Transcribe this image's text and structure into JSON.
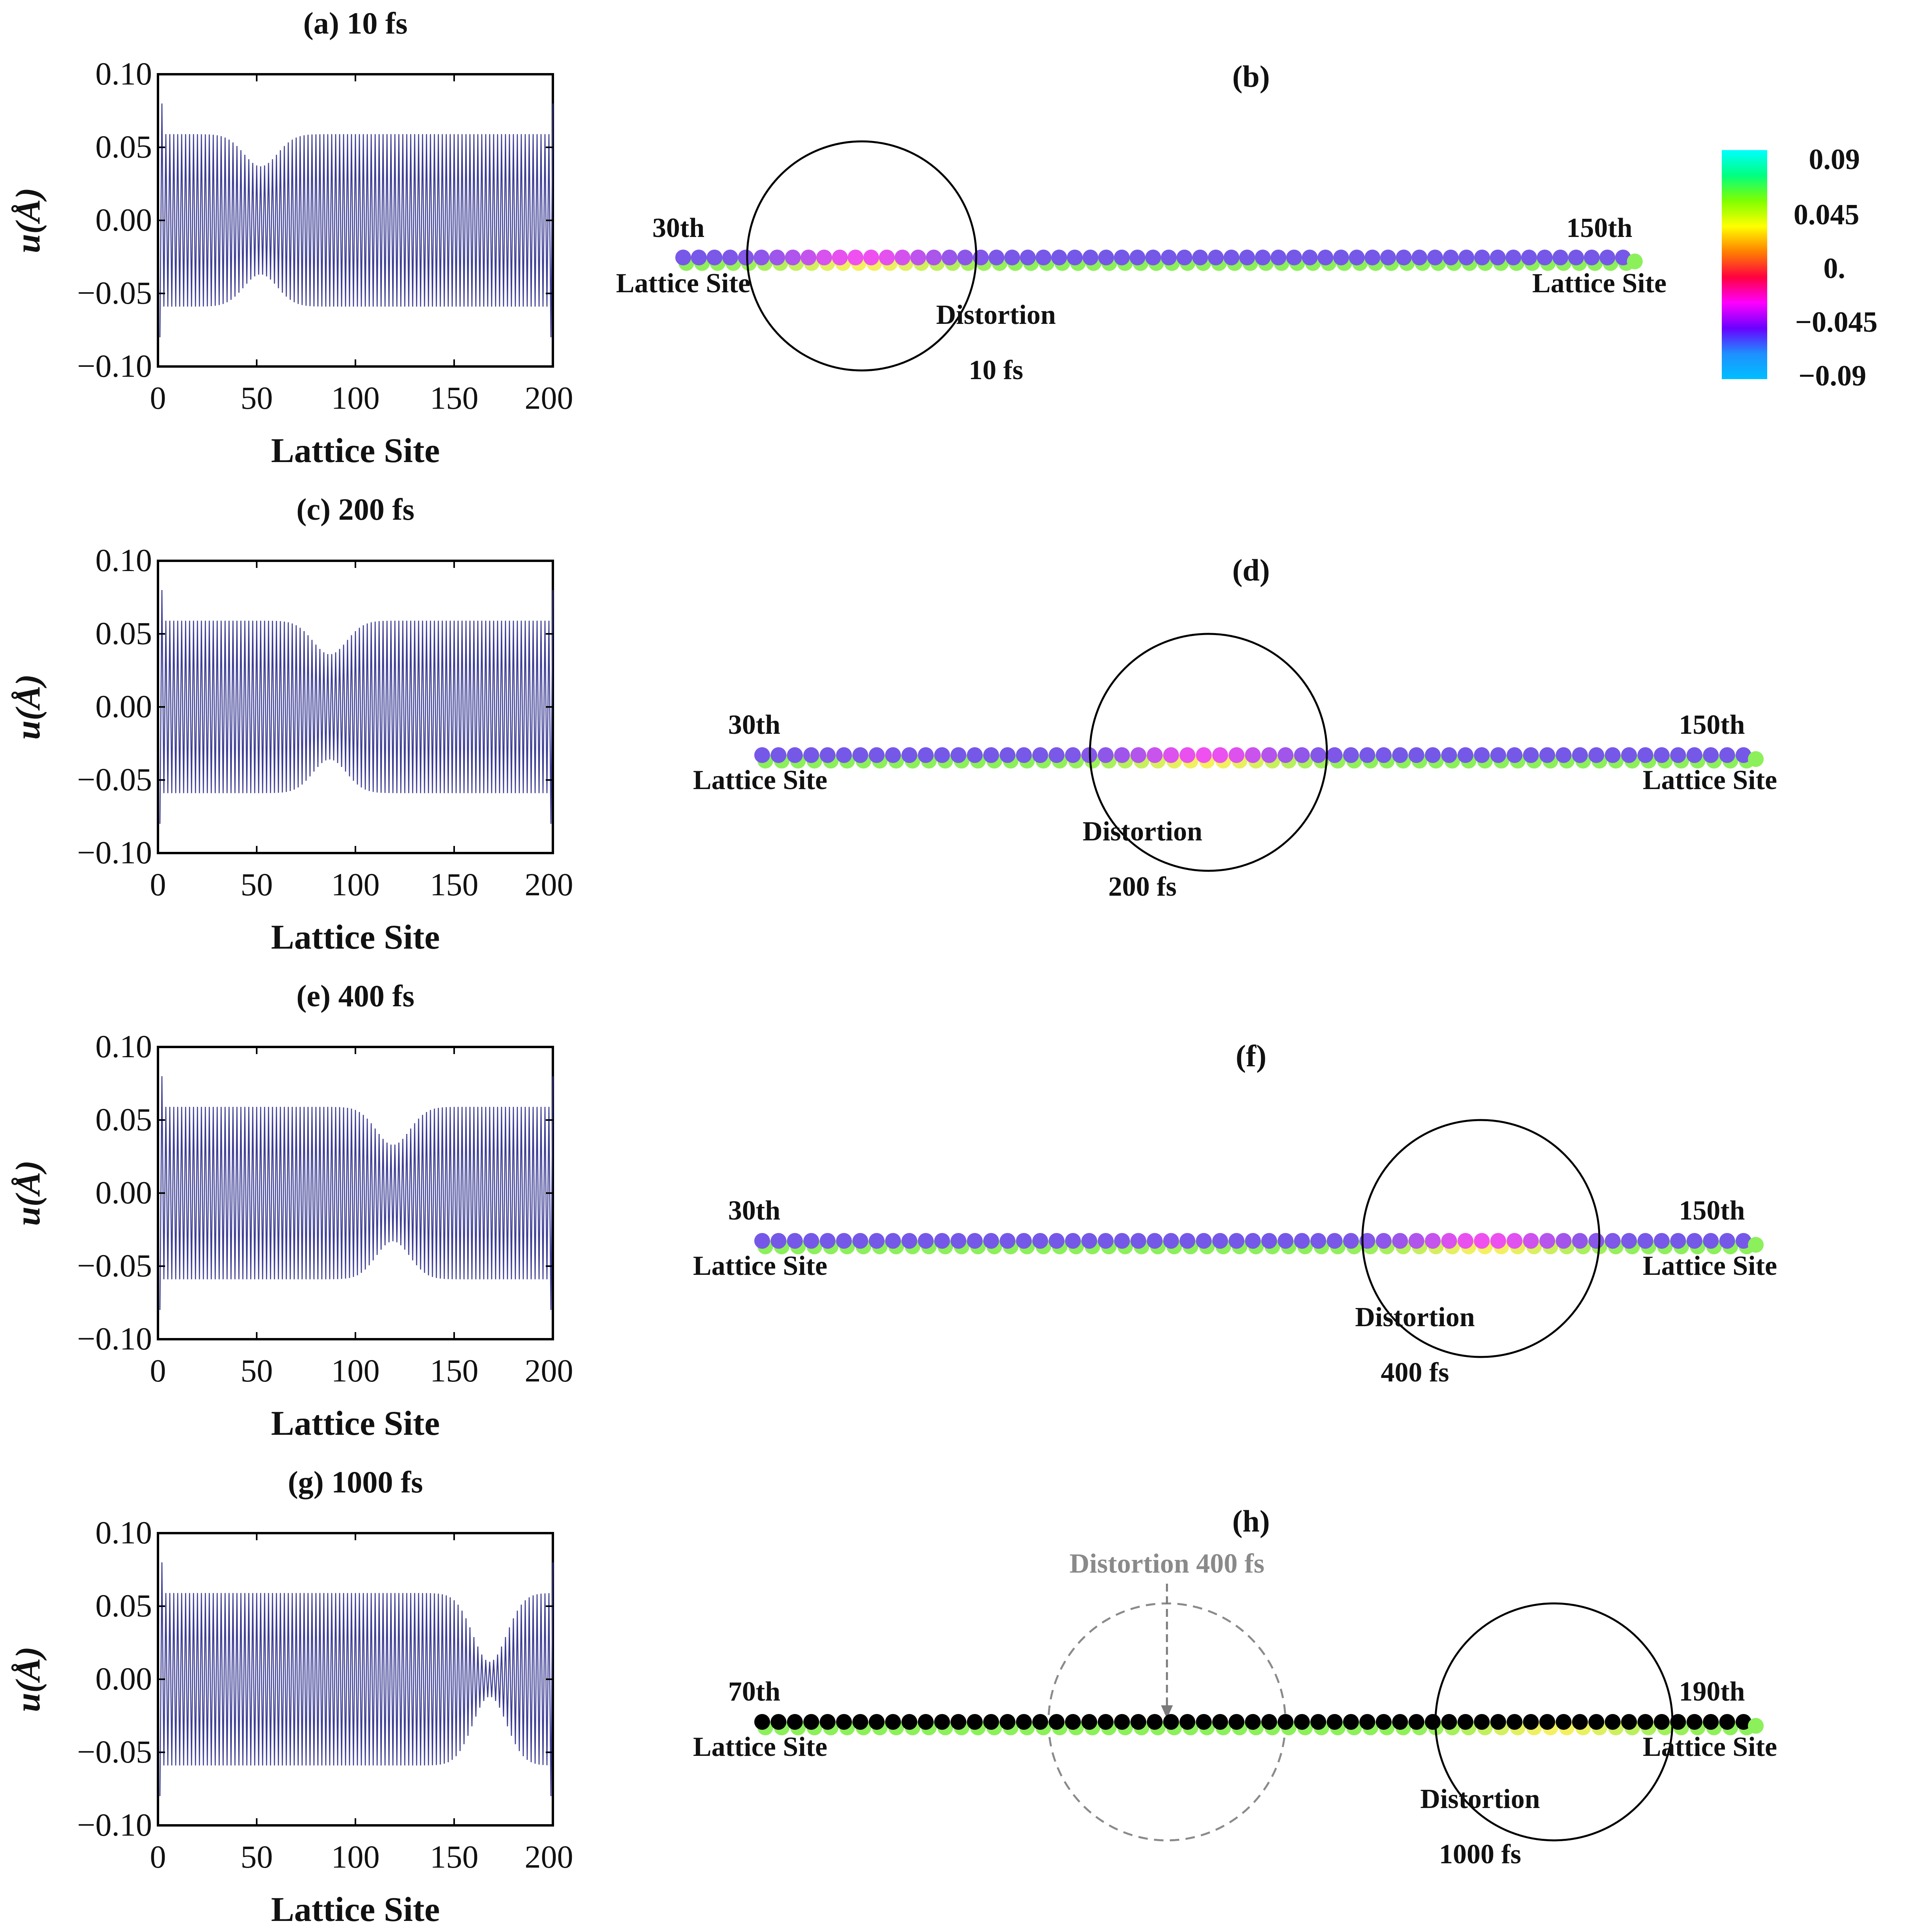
{
  "chart_data": [
    {
      "type": "line",
      "title": "(a) 10 fs",
      "xlabel": "Lattice Site",
      "ylabel": "u(Å)",
      "xlim": [
        0,
        200
      ],
      "ylim": [
        -0.1,
        0.1
      ],
      "xticks": [
        "0",
        "50",
        "100",
        "150",
        "200"
      ],
      "yticks": [
        "0.10",
        "0.05",
        "0.00",
        "−0.05",
        "−0.10"
      ],
      "series": [
        {
          "amplitude_far": 0.059,
          "amplitude_min": 0.037,
          "dip_center_site": 52,
          "dip_width": 12,
          "edge_peak": 0.08,
          "sites": [
            1,
            200
          ],
          "color": "#3c3c94"
        }
      ]
    },
    {
      "type": "scatter",
      "title": "(b)",
      "left_label": [
        "30th",
        "Lattice Site"
      ],
      "right_label": [
        "150th",
        "Lattice Site"
      ],
      "annotation": [
        "Distortion",
        "10 fs"
      ],
      "distortion_center_site": 40
    },
    {
      "type": "line",
      "title": "(c) 200 fs",
      "xlabel": "Lattice Site",
      "ylabel": "u(Å)",
      "xlim": [
        0,
        200
      ],
      "ylim": [
        -0.1,
        0.1
      ],
      "xticks": [
        "0",
        "50",
        "100",
        "150",
        "200"
      ],
      "yticks": [
        "0.10",
        "0.05",
        "0.00",
        "−0.05",
        "−0.10"
      ],
      "series": [
        {
          "amplitude_far": 0.059,
          "amplitude_min": 0.036,
          "dip_center_site": 87,
          "dip_width": 12,
          "edge_peak": 0.08,
          "sites": [
            1,
            200
          ],
          "color": "#3c3c94"
        }
      ]
    },
    {
      "type": "scatter",
      "title": "(d)",
      "left_label": [
        "30th",
        "Lattice Site"
      ],
      "right_label": [
        "150th",
        "Lattice Site"
      ],
      "annotation": [
        "Distortion",
        "200 fs"
      ],
      "distortion_center_site": 74
    },
    {
      "type": "line",
      "title": "(e) 400 fs",
      "xlabel": "Lattice Site",
      "ylabel": "u(Å)",
      "xlim": [
        0,
        200
      ],
      "ylim": [
        -0.1,
        0.1
      ],
      "xticks": [
        "0",
        "50",
        "100",
        "150",
        "200"
      ],
      "yticks": [
        "0.10",
        "0.05",
        "0.00",
        "−0.05",
        "−0.10"
      ],
      "series": [
        {
          "amplitude_far": 0.059,
          "amplitude_min": 0.033,
          "dip_center_site": 119,
          "dip_width": 12,
          "edge_peak": 0.08,
          "sites": [
            1,
            200
          ],
          "color": "#3c3c94"
        }
      ]
    },
    {
      "type": "scatter",
      "title": "(f)",
      "left_label": [
        "30th",
        "Lattice Site"
      ],
      "right_label": [
        "150th",
        "Lattice Site"
      ],
      "annotation": [
        "Distortion",
        "400 fs"
      ],
      "distortion_center_site": 118
    },
    {
      "type": "line",
      "title": "(g) 1000 fs",
      "xlabel": "Lattice Site",
      "ylabel": "u(Å)",
      "xlim": [
        0,
        200
      ],
      "ylim": [
        -0.1,
        0.1
      ],
      "xticks": [
        "0",
        "50",
        "100",
        "150",
        "200"
      ],
      "yticks": [
        "0.10",
        "0.05",
        "0.00",
        "−0.05",
        "−0.10"
      ],
      "series": [
        {
          "amplitude_far": 0.059,
          "amplitude_min": 0.012,
          "dip_center_site": 168,
          "dip_width": 12,
          "edge_peak": 0.08,
          "sites": [
            1,
            200
          ],
          "color": "#3c3c94"
        }
      ]
    },
    {
      "type": "scatter",
      "title": "(h)",
      "left_label": [
        "70th",
        "Lattice Site"
      ],
      "right_label": [
        "190th",
        "Lattice Site"
      ],
      "annotation": [
        "Distortion",
        "1000 fs"
      ],
      "previous_annotation": "Distortion 400 fs",
      "distortion_center_site": 169,
      "previous_distortion_center_site": 118
    }
  ],
  "colorbar": {
    "ticks": [
      "0.09",
      "0.045",
      "0.",
      "−0.045",
      "−0.09"
    ],
    "range": [
      -0.09,
      0.09
    ],
    "colors": [
      "#00bfff",
      "#1e90ff",
      "#6a00ff",
      "#ff00ff",
      "#ff0040",
      "#ff8000",
      "#ffff00",
      "#80ff00",
      "#00ff80",
      "#00ffff"
    ]
  }
}
